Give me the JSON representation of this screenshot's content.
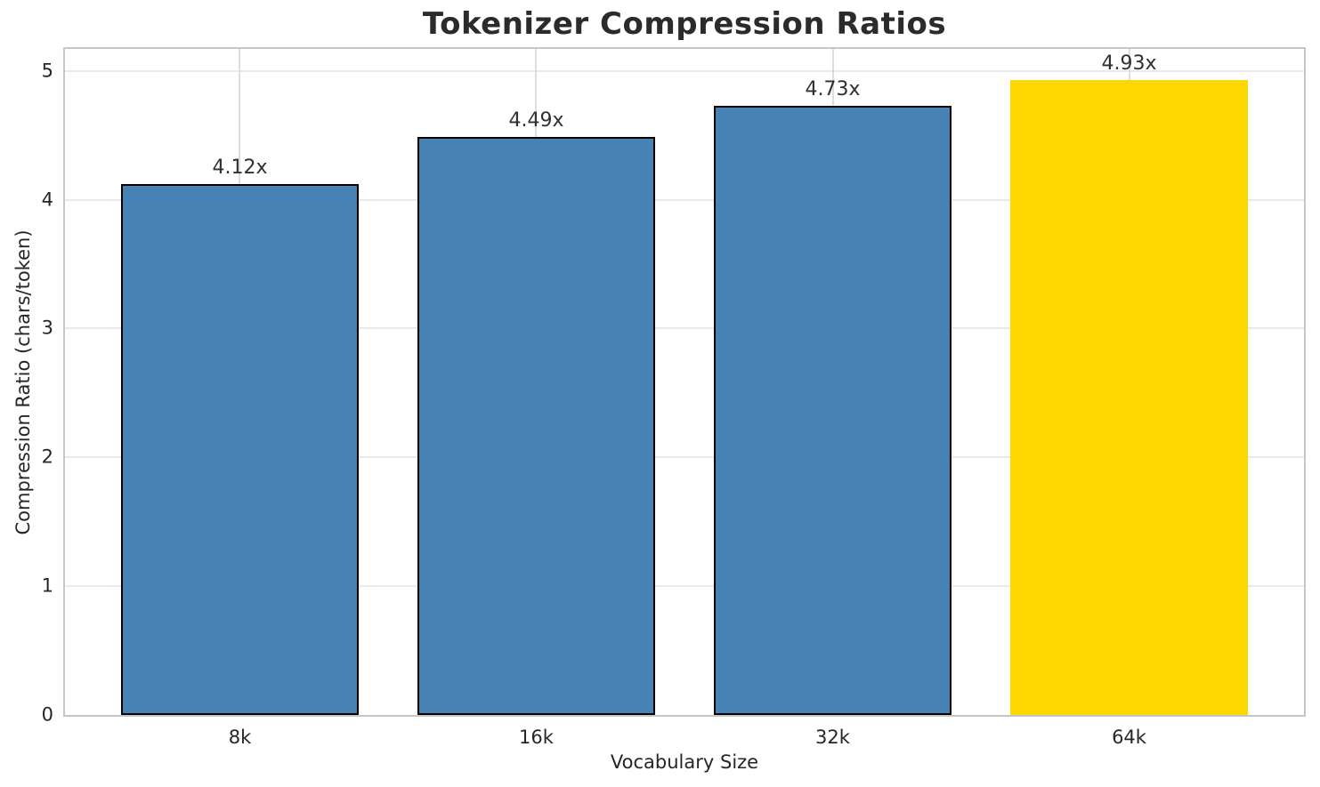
{
  "chart_data": {
    "type": "bar",
    "title": "Tokenizer Compression Ratios",
    "xlabel": "Vocabulary Size",
    "ylabel": "Compression Ratio (chars/token)",
    "categories": [
      "8k",
      "16k",
      "32k",
      "64k"
    ],
    "values": [
      4.12,
      4.49,
      4.73,
      4.93
    ],
    "bar_labels": [
      "4.12x",
      "4.49x",
      "4.73x",
      "4.93x"
    ],
    "bar_colors": [
      "#4682B4",
      "#4682B4",
      "#4682B4",
      "#FFD700"
    ],
    "bar_edge_colors": [
      "#000000",
      "#000000",
      "#000000",
      "none"
    ],
    "highlight_index": 3,
    "bar_width": 0.8,
    "xlim": [
      -0.59,
      3.59
    ],
    "ylim": [
      0,
      5.17
    ],
    "yticks": [
      0,
      1,
      2,
      3,
      4,
      5
    ],
    "ytick_labels": [
      "0",
      "1",
      "2",
      "3",
      "4",
      "5"
    ],
    "grid": true,
    "legend": "none",
    "colors": {
      "bar_default": "#4682B4",
      "bar_highlight": "#FFD700",
      "bar_edge": "#000000",
      "grid_line": "#e5e5e5",
      "spine": "#c6c6c6",
      "text": "#262626"
    }
  }
}
